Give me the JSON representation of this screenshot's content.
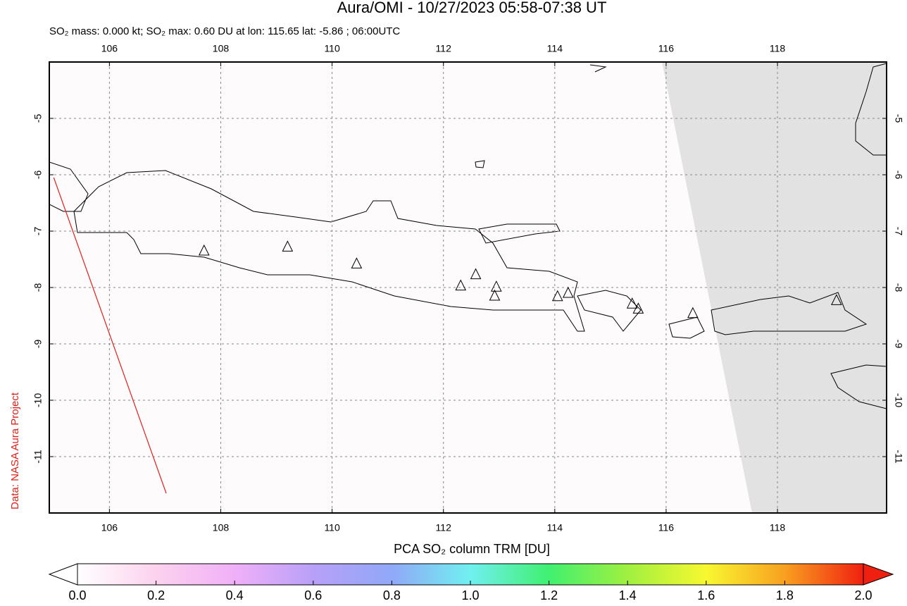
{
  "chart_data": {
    "type": "map",
    "title": "Aura/OMI - 10/27/2023 05:58-07:38 UT",
    "subtitle": "SO₂ mass: 0.000 kt; SO₂ max: 0.60 DU at lon: 115.65 lat: -5.86 ; 06:00UTC",
    "side_label": "Data: NASA Aura Project",
    "xlim": [
      104.92,
      119.96
    ],
    "ylim": [
      -12,
      -4
    ],
    "xticks": [
      106,
      108,
      110,
      112,
      114,
      116,
      118
    ],
    "yticks": [
      -5,
      -6,
      -7,
      -8,
      -9,
      -10,
      -11
    ],
    "grid": true,
    "volcanoes": {
      "lon": [
        107.7,
        109.2,
        110.44,
        112.31,
        112.58,
        112.95,
        112.92,
        114.05,
        114.24,
        115.39,
        115.5,
        116.48,
        119.06
      ],
      "lat": [
        -7.35,
        -7.28,
        -7.58,
        -7.97,
        -7.77,
        -7.99,
        -8.15,
        -8.16,
        -8.1,
        -8.29,
        -8.38,
        -8.46,
        -8.23
      ]
    },
    "orbit_track": {
      "lon": [
        105.0,
        107.02
      ],
      "lat": [
        -6.05,
        -11.65
      ],
      "color": "#e0201a"
    },
    "colorbar": {
      "label": "PCA SO₂ column TRM [DU]",
      "lim": [
        0,
        2
      ],
      "colormap": [
        "#ffffff",
        "#fcd2ee",
        "#f0b0f8",
        "#b8a0f8",
        "#90a8f8",
        "#70f0f0",
        "#40f070",
        "#a0f040",
        "#f8f830",
        "#f8a020",
        "#f02010"
      ],
      "ticks": [
        {
          "value": 0,
          "label": "0.0"
        },
        {
          "value": 0.2,
          "label": "0.2"
        },
        {
          "value": 0.4,
          "label": "0.4"
        },
        {
          "value": 0.6,
          "label": "0.6"
        },
        {
          "value": 0.8,
          "label": "0.8"
        },
        {
          "value": 1,
          "label": "1.0"
        },
        {
          "value": 1.2,
          "label": "1.2"
        },
        {
          "value": 1.4,
          "label": "1.4"
        },
        {
          "value": 1.6,
          "label": "1.6"
        },
        {
          "value": 1.8,
          "label": "1.8"
        },
        {
          "value": 2,
          "label": "2.0"
        }
      ]
    }
  }
}
